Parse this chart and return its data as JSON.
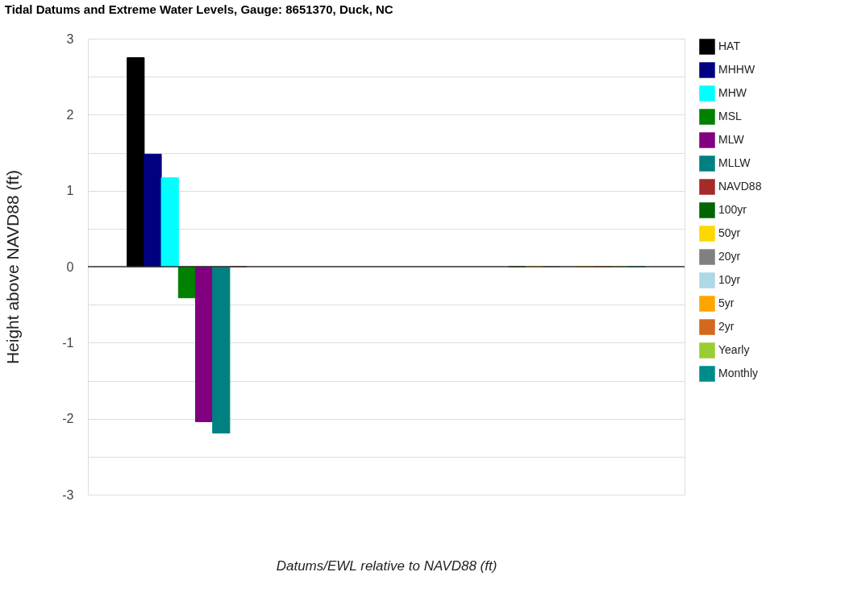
{
  "chart_data": {
    "type": "bar",
    "title": "Tidal Datums and Extreme Water Levels, Gauge: 8651370, Duck, NC",
    "xlabel": "Datums/EWL relative to NAVD88 (ft)",
    "ylabel": "Height above NAVD88 (ft)",
    "categories": [
      null,
      null
    ],
    "series": [
      {
        "name": "HAT",
        "color": "#000000",
        "values": [
          2.75,
          null
        ]
      },
      {
        "name": "MHHW",
        "color": "#000080",
        "values": [
          1.48,
          null
        ]
      },
      {
        "name": "MHW",
        "color": "#00ffff",
        "values": [
          1.17,
          null
        ]
      },
      {
        "name": "MSL",
        "color": "#008000",
        "values": [
          -0.41,
          null
        ]
      },
      {
        "name": "MLW",
        "color": "#800080",
        "values": [
          -2.04,
          null
        ]
      },
      {
        "name": "MLLW",
        "color": "#008080",
        "values": [
          -2.19,
          null
        ]
      },
      {
        "name": "NAVD88",
        "color": "#a52a2a",
        "values": [
          0,
          null
        ]
      },
      {
        "name": "100yr",
        "color": "#006400",
        "values": [
          null,
          0
        ]
      },
      {
        "name": "50yr",
        "color": "#ffd700",
        "values": [
          null,
          0
        ]
      },
      {
        "name": "20yr",
        "color": "#808080",
        "values": [
          null,
          0
        ]
      },
      {
        "name": "10yr",
        "color": "#add8e6",
        "values": [
          null,
          0
        ]
      },
      {
        "name": "5yr",
        "color": "#ffa500",
        "values": [
          null,
          0
        ]
      },
      {
        "name": "2yr",
        "color": "#d2691e",
        "values": [
          null,
          0
        ]
      },
      {
        "name": "Yearly",
        "color": "#9acd32",
        "values": [
          null,
          0
        ]
      },
      {
        "name": "Monthly",
        "color": "#008b8b",
        "values": [
          null,
          0
        ]
      }
    ],
    "ylim": [
      -3,
      3
    ],
    "yticks": [
      -3,
      {
        "value": -2.5,
        "label": null
      },
      -2,
      {
        "value": -1.5,
        "label": null
      },
      -1,
      {
        "value": -0.5,
        "label": null
      },
      0,
      {
        "value": 0.5,
        "label": null
      },
      1,
      {
        "value": 1.5,
        "label": null
      },
      2,
      {
        "value": 2.5,
        "label": null
      },
      3
    ],
    "ref_lines": [
      {
        "axis": "y",
        "value": 0,
        "color": "#333333"
      }
    ],
    "grid": "y",
    "legend": "right",
    "tick_labels": "y"
  }
}
